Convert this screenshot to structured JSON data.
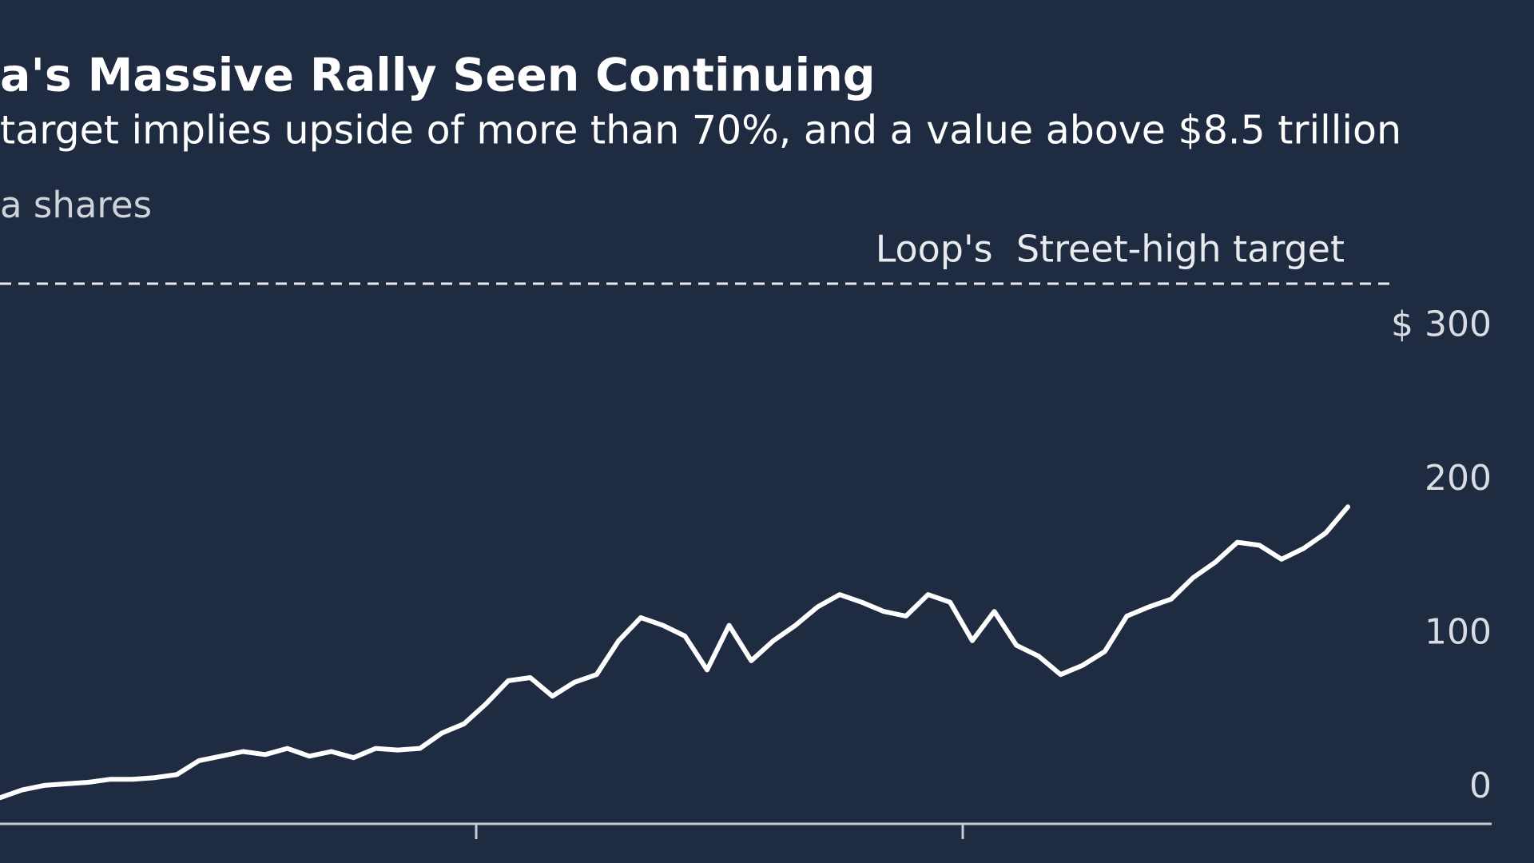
{
  "chart_data": {
    "type": "line",
    "title": "a's Massive Rally Seen Continuing",
    "subtitle": "target implies upside of more than 70%, and a value above $8.5 trillion",
    "y_label": "a shares",
    "target": {
      "label": "Loop's  Street-high target",
      "value": 337
    },
    "ylim": [
      -14,
      350
    ],
    "yticks": [
      0,
      100,
      200,
      {
        "value": 300,
        "label": "$ 300"
      }
    ],
    "grid": false,
    "color": "#ffffff",
    "categories": [
      null,
      null,
      null,
      null,
      null,
      null,
      null,
      null,
      null,
      null,
      null,
      null,
      null,
      null,
      null,
      null,
      null,
      null,
      null,
      null,
      null,
      null,
      null,
      null,
      null,
      null,
      null,
      null,
      null,
      null,
      null,
      null,
      null,
      null,
      null,
      null,
      null,
      null,
      null,
      null,
      null,
      null,
      null,
      null,
      null,
      null,
      null,
      null,
      null,
      null,
      null,
      null,
      null,
      null,
      null,
      null,
      null,
      null,
      null,
      null,
      null,
      null
    ],
    "values": [
      3,
      8,
      11,
      12,
      13,
      15,
      15,
      16,
      18,
      27,
      30,
      33,
      31,
      35,
      30,
      33,
      29,
      35,
      34,
      35,
      45,
      51,
      64,
      79,
      81,
      69,
      78,
      83,
      105,
      120,
      115,
      108,
      86,
      115,
      92,
      105,
      115,
      127,
      135,
      130,
      124,
      121,
      135,
      130,
      105,
      124,
      102,
      95,
      83,
      89,
      98,
      121,
      127,
      132,
      146,
      156,
      169,
      167,
      158,
      165,
      175,
      192
    ]
  }
}
